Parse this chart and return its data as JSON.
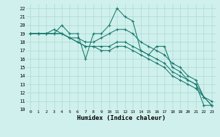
{
  "background_color": "#cff0ec",
  "grid_color": "#aad8d3",
  "line_color": "#1a7a6e",
  "xlabel": "Humidex (Indice chaleur)",
  "xlim": [
    -0.5,
    23.5
  ],
  "ylim": [
    10,
    22.5
  ],
  "xticks": [
    0,
    1,
    2,
    3,
    4,
    5,
    6,
    7,
    8,
    9,
    10,
    11,
    12,
    13,
    14,
    15,
    16,
    17,
    18,
    19,
    20,
    21,
    22,
    23
  ],
  "yticks": [
    10,
    11,
    12,
    13,
    14,
    15,
    16,
    17,
    18,
    19,
    20,
    21,
    22
  ],
  "series": [
    [
      19,
      19,
      19,
      19,
      20,
      19,
      19,
      16,
      19,
      19,
      20,
      22,
      21,
      20.5,
      17,
      16.5,
      17.5,
      17.5,
      15,
      14.5,
      13.5,
      13,
      10.5,
      10.5
    ],
    [
      19,
      19,
      19,
      19.5,
      19,
      18.5,
      18.5,
      18,
      18,
      18.5,
      19,
      19.5,
      19.5,
      19,
      18,
      17.5,
      17,
      16.5,
      15.5,
      15,
      14,
      13.5,
      11.5,
      11
    ],
    [
      19,
      19,
      19,
      19,
      19,
      18.5,
      18,
      17.5,
      17.5,
      17.5,
      17.5,
      18,
      18,
      17.5,
      17,
      16.5,
      16,
      15.5,
      14.5,
      14,
      13.5,
      13,
      11.5,
      10.5
    ],
    [
      19,
      19,
      19,
      19,
      19,
      18.5,
      18,
      17.5,
      17.5,
      17,
      17,
      17.5,
      17.5,
      17,
      16.5,
      16,
      15.5,
      15,
      14,
      13.5,
      13,
      12.5,
      11.5,
      10.5
    ]
  ]
}
